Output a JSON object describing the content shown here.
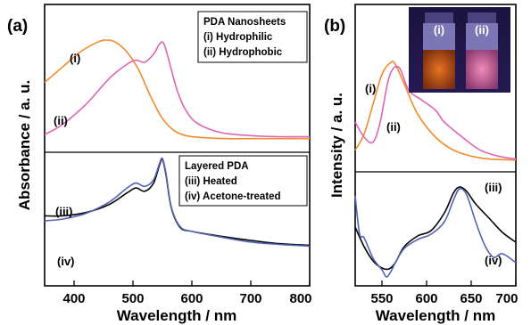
{
  "colors": {
    "orange": "#F08C2E",
    "pink": "#E064B4",
    "black": "#000000",
    "blue": "#5563B3"
  },
  "chart_data": [
    {
      "panel_label": "(a)",
      "type": "line",
      "xlabel": "Wavelength / nm",
      "ylabel": "Absorbance / a. u.",
      "xlim": [
        350,
        800
      ],
      "xticks": [
        "400",
        "500",
        "600",
        "700",
        "800"
      ],
      "legend_top": {
        "title": "PDA Nanosheets",
        "entries": [
          "(i) Hydrophilic",
          "(ii) Hydrophobic"
        ]
      },
      "legend_bottom": {
        "title": "Layered PDA",
        "entries": [
          "(iii) Heated",
          "(iv) Acetone-treated"
        ]
      },
      "series_labels": [
        "(i)",
        "(ii)",
        "(iii)",
        "(iv)"
      ],
      "series": [
        {
          "label": "(i)",
          "color": "#F08C2E",
          "x": [
            350,
            380,
            410,
            440,
            455,
            470,
            490,
            510,
            530,
            550,
            570,
            590,
            620,
            660,
            700,
            750,
            800
          ],
          "y": [
            0.58,
            0.73,
            0.88,
            0.98,
            1.0,
            0.98,
            0.88,
            0.7,
            0.44,
            0.22,
            0.1,
            0.05,
            0.03,
            0.02,
            0.02,
            0.02,
            0.02
          ]
        },
        {
          "label": "(ii)",
          "color": "#E064B4",
          "x": [
            350,
            380,
            420,
            460,
            490,
            505,
            520,
            535,
            545,
            552,
            560,
            575,
            590,
            610,
            650,
            700,
            750,
            800
          ],
          "y": [
            0.06,
            0.16,
            0.36,
            0.62,
            0.76,
            0.8,
            0.78,
            0.86,
            0.96,
            0.97,
            0.82,
            0.5,
            0.3,
            0.17,
            0.08,
            0.05,
            0.04,
            0.04
          ]
        },
        {
          "label": "(iii)",
          "color": "#000000",
          "x": [
            350,
            380,
            420,
            460,
            490,
            505,
            520,
            535,
            545,
            550,
            556,
            565,
            580,
            600,
            650,
            700,
            750,
            800
          ],
          "y": [
            0.3,
            0.3,
            0.34,
            0.44,
            0.58,
            0.64,
            0.6,
            0.7,
            0.92,
            0.99,
            0.8,
            0.4,
            0.16,
            0.11,
            0.05,
            0.0,
            -0.04,
            -0.06
          ]
        },
        {
          "label": "(iv)",
          "color": "#5563B3",
          "x": [
            350,
            380,
            420,
            460,
            490,
            505,
            520,
            535,
            545,
            550,
            556,
            565,
            580,
            600,
            650,
            700,
            750,
            800
          ],
          "y": [
            0.24,
            0.26,
            0.33,
            0.47,
            0.64,
            0.7,
            0.66,
            0.74,
            0.94,
            1.0,
            0.82,
            0.41,
            0.17,
            0.11,
            0.04,
            -0.02,
            -0.05,
            -0.07
          ]
        }
      ]
    },
    {
      "panel_label": "(b)",
      "type": "line",
      "xlabel": "Wavelength / nm",
      "ylabel": "Intensity / a. u.",
      "xlim": [
        520,
        700
      ],
      "xticks": [
        "550",
        "600",
        "650",
        "700"
      ],
      "inset_labels": [
        "(i)",
        "(ii)"
      ],
      "series_labels": [
        "(i)",
        "(ii)",
        "(iii)",
        "(iv)"
      ],
      "series": [
        {
          "label": "(i)",
          "color": "#F08C2E",
          "x": [
            520,
            530,
            540,
            550,
            560,
            565,
            575,
            590,
            610,
            630,
            650,
            670,
            700
          ],
          "y": [
            0.12,
            0.28,
            0.58,
            0.88,
            1.0,
            0.98,
            0.78,
            0.48,
            0.25,
            0.12,
            0.06,
            0.03,
            0.02
          ]
        },
        {
          "label": "(ii)",
          "color": "#E064B4",
          "x": [
            520,
            530,
            540,
            548,
            556,
            562,
            570,
            580,
            595,
            610,
            620,
            640,
            660,
            680,
            700
          ],
          "y": [
            0.4,
            0.25,
            0.2,
            0.4,
            0.78,
            0.93,
            0.94,
            0.72,
            0.62,
            0.52,
            0.4,
            0.25,
            0.12,
            0.06,
            0.03
          ]
        },
        {
          "label": "(iii)",
          "color": "#000000",
          "x": [
            520,
            530,
            540,
            550,
            558,
            565,
            575,
            590,
            605,
            620,
            630,
            637,
            645,
            655,
            670,
            685,
            700
          ],
          "y": [
            0.5,
            0.28,
            0.12,
            0.04,
            0.03,
            0.1,
            0.28,
            0.4,
            0.46,
            0.66,
            0.88,
            0.95,
            0.9,
            0.76,
            0.6,
            0.44,
            0.33
          ]
        },
        {
          "label": "(iv)",
          "color": "#5563B3",
          "x": [
            520,
            525,
            530,
            540,
            550,
            555,
            560,
            565,
            575,
            590,
            605,
            620,
            630,
            637,
            645,
            655,
            665,
            675,
            685,
            700
          ],
          "y": [
            0.85,
            0.42,
            0.38,
            0.15,
            0.02,
            -0.06,
            0.0,
            0.1,
            0.26,
            0.36,
            0.42,
            0.56,
            0.8,
            0.93,
            0.86,
            0.56,
            0.3,
            0.16,
            0.2,
            0.1
          ]
        }
      ]
    }
  ]
}
